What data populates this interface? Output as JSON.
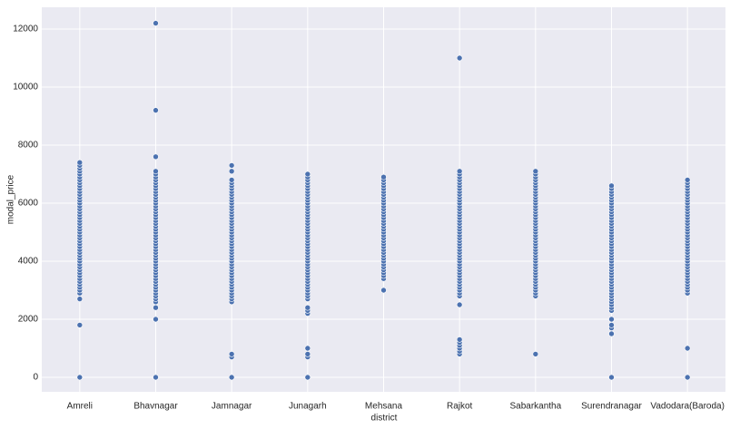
{
  "chart_data": {
    "type": "strip",
    "xlabel": "district",
    "ylabel": "modal_price",
    "categories": [
      "Amreli",
      "Bhavnagar",
      "Jamnagar",
      "Junagarh",
      "Mehsana",
      "Rajkot",
      "Sabarkantha",
      "Surendranagar",
      "Vadodara(Baroda)"
    ],
    "values": [
      [
        0,
        1800,
        2700,
        2900,
        3000,
        3100,
        3200,
        3300,
        3400,
        3500,
        3600,
        3700,
        3800,
        3900,
        4000,
        4100,
        4200,
        4300,
        4400,
        4500,
        4600,
        4700,
        4800,
        4900,
        5000,
        5100,
        5200,
        5300,
        5400,
        5500,
        5600,
        5700,
        5800,
        5900,
        6000,
        6100,
        6200,
        6300,
        6400,
        6500,
        6600,
        6700,
        6800,
        6900,
        7000,
        7100,
        7200,
        7300,
        7400
      ],
      [
        0,
        2000,
        2400,
        2600,
        2700,
        2800,
        2900,
        3000,
        3100,
        3200,
        3300,
        3400,
        3500,
        3600,
        3700,
        3800,
        3900,
        4000,
        4100,
        4200,
        4300,
        4400,
        4500,
        4600,
        4700,
        4800,
        4900,
        5000,
        5100,
        5200,
        5300,
        5400,
        5500,
        5600,
        5700,
        5800,
        5900,
        6000,
        6100,
        6200,
        6300,
        6400,
        6500,
        6600,
        6700,
        6800,
        6900,
        7000,
        7100,
        7600,
        9200,
        12200
      ],
      [
        0,
        700,
        800,
        2600,
        2700,
        2800,
        2900,
        3000,
        3100,
        3200,
        3300,
        3400,
        3500,
        3600,
        3700,
        3800,
        3900,
        4000,
        4100,
        4200,
        4300,
        4400,
        4500,
        4600,
        4700,
        4800,
        4900,
        5000,
        5100,
        5200,
        5300,
        5400,
        5500,
        5600,
        5700,
        5800,
        5900,
        6000,
        6100,
        6200,
        6300,
        6400,
        6500,
        6600,
        6700,
        6800,
        7100,
        7300
      ],
      [
        0,
        700,
        800,
        1000,
        2200,
        2300,
        2400,
        2700,
        2800,
        2900,
        3000,
        3100,
        3200,
        3300,
        3400,
        3500,
        3600,
        3700,
        3800,
        3900,
        4000,
        4100,
        4200,
        4300,
        4400,
        4500,
        4600,
        4700,
        4800,
        4900,
        5000,
        5100,
        5200,
        5300,
        5400,
        5500,
        5600,
        5700,
        5800,
        5900,
        6000,
        6100,
        6200,
        6300,
        6400,
        6500,
        6600,
        6700,
        6800,
        6900,
        7000
      ],
      [
        3000,
        3400,
        3500,
        3600,
        3700,
        3800,
        3900,
        4000,
        4100,
        4200,
        4300,
        4400,
        4500,
        4600,
        4700,
        4800,
        4900,
        5000,
        5100,
        5200,
        5300,
        5400,
        5500,
        5600,
        5700,
        5800,
        5900,
        6000,
        6100,
        6200,
        6300,
        6400,
        6500,
        6600,
        6700,
        6800,
        6900
      ],
      [
        800,
        900,
        1000,
        1100,
        1200,
        1300,
        2500,
        2800,
        2900,
        3000,
        3100,
        3200,
        3300,
        3400,
        3500,
        3600,
        3700,
        3800,
        3900,
        4000,
        4100,
        4200,
        4300,
        4400,
        4500,
        4600,
        4700,
        4800,
        4900,
        5000,
        5100,
        5200,
        5300,
        5400,
        5500,
        5600,
        5700,
        5800,
        5900,
        6000,
        6100,
        6200,
        6300,
        6400,
        6500,
        6600,
        6700,
        6800,
        6900,
        7000,
        7100,
        11000
      ],
      [
        800,
        2800,
        2900,
        3000,
        3100,
        3200,
        3300,
        3400,
        3500,
        3600,
        3700,
        3800,
        3900,
        4000,
        4100,
        4200,
        4300,
        4400,
        4500,
        4600,
        4700,
        4800,
        4900,
        5000,
        5100,
        5200,
        5300,
        5400,
        5500,
        5600,
        5700,
        5800,
        5900,
        6000,
        6100,
        6200,
        6300,
        6400,
        6500,
        6600,
        6700,
        6800,
        6900,
        7000,
        7100
      ],
      [
        0,
        1500,
        1700,
        1800,
        2000,
        2300,
        2400,
        2500,
        2600,
        2700,
        2800,
        2900,
        3000,
        3100,
        3200,
        3300,
        3400,
        3500,
        3600,
        3700,
        3800,
        3900,
        4000,
        4100,
        4200,
        4300,
        4400,
        4500,
        4600,
        4700,
        4800,
        4900,
        5000,
        5100,
        5200,
        5300,
        5400,
        5500,
        5600,
        5700,
        5800,
        5900,
        6000,
        6100,
        6200,
        6300,
        6400,
        6500,
        6600
      ],
      [
        0,
        1000,
        2900,
        3000,
        3100,
        3200,
        3300,
        3400,
        3500,
        3600,
        3700,
        3800,
        3900,
        4000,
        4100,
        4200,
        4300,
        4400,
        4500,
        4600,
        4700,
        4800,
        4900,
        5000,
        5100,
        5200,
        5300,
        5400,
        5500,
        5600,
        5700,
        5800,
        5900,
        6000,
        6100,
        6200,
        6300,
        6400,
        6500,
        6600,
        6700,
        6800
      ]
    ],
    "color": "#4c72b0",
    "ylim": [
      -500,
      12750
    ],
    "yticks": [
      0,
      2000,
      4000,
      6000,
      8000,
      10000,
      12000
    ],
    "grid": true
  }
}
